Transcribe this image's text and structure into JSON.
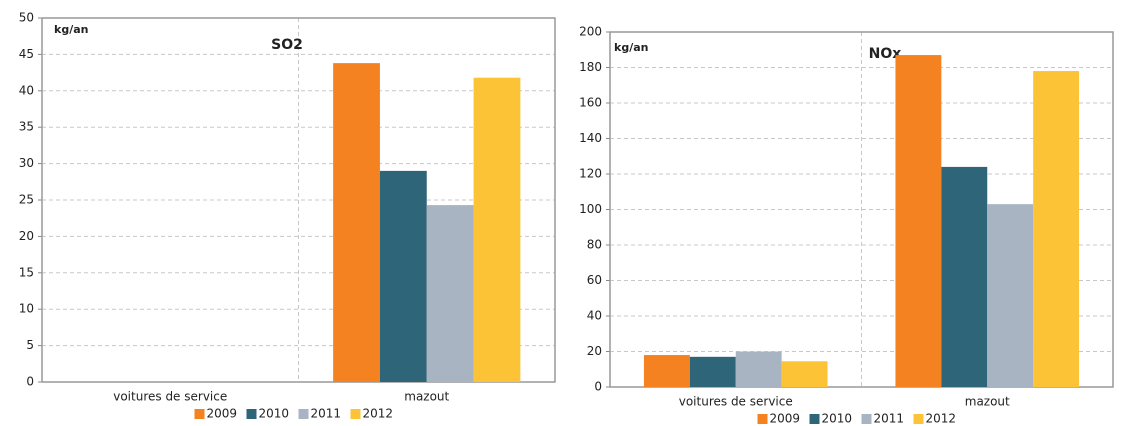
{
  "chart_data": [
    {
      "type": "bar",
      "title": "SO2",
      "ylabel": "kg/an",
      "categories": [
        "voitures de service",
        "mazout"
      ],
      "series": [
        {
          "name": "2009",
          "color": "#f58220",
          "values": [
            0,
            43.8
          ]
        },
        {
          "name": "2010",
          "color": "#2e6579",
          "values": [
            0,
            29
          ]
        },
        {
          "name": "2011",
          "color": "#a8b4c2",
          "values": [
            0,
            24.3
          ]
        },
        {
          "name": "2012",
          "color": "#fdc336",
          "values": [
            0,
            41.8
          ]
        }
      ],
      "ylim": [
        0,
        50
      ],
      "yticks": [
        0,
        5,
        10,
        15,
        20,
        25,
        30,
        35,
        40,
        45,
        50
      ],
      "grid": true,
      "legend": "bottom"
    },
    {
      "type": "bar",
      "title": "NOx",
      "ylabel": "kg/an",
      "categories": [
        "voitures de service",
        "mazout"
      ],
      "series": [
        {
          "name": "2009",
          "color": "#f58220",
          "values": [
            18,
            187
          ]
        },
        {
          "name": "2010",
          "color": "#2e6579",
          "values": [
            17,
            124
          ]
        },
        {
          "name": "2011",
          "color": "#a8b4c2",
          "values": [
            20,
            103
          ]
        },
        {
          "name": "2012",
          "color": "#fdc336",
          "values": [
            14.5,
            178
          ]
        }
      ],
      "ylim": [
        0,
        200
      ],
      "yticks": [
        0,
        20,
        40,
        60,
        80,
        100,
        120,
        140,
        160,
        180,
        200
      ],
      "grid": true,
      "legend": "bottom"
    }
  ]
}
